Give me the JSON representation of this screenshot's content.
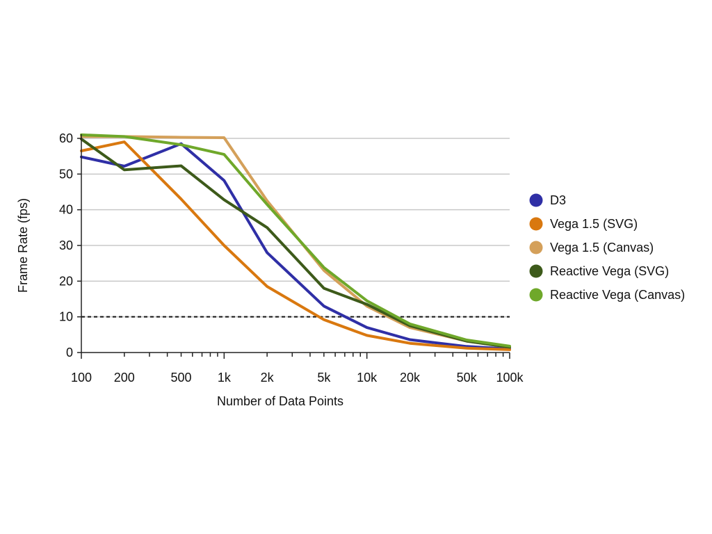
{
  "chart_data": {
    "type": "line",
    "title": "",
    "xlabel": "Number of Data Points",
    "ylabel": "Frame Rate (fps)",
    "x_scale": "log",
    "xlim": [
      100,
      100000
    ],
    "ylim": [
      0,
      60
    ],
    "x_tick_values": [
      100,
      200,
      500,
      1000,
      2000,
      5000,
      10000,
      20000,
      50000,
      100000
    ],
    "x_tick_labels": [
      "100",
      "200",
      "500",
      "1k",
      "2k",
      "5k",
      "10k",
      "20k",
      "50k",
      "100k"
    ],
    "y_ticks": [
      0,
      10,
      20,
      30,
      40,
      50,
      60
    ],
    "grid": "horizontal",
    "reference_line": {
      "y": 10,
      "style": "dashed"
    },
    "legend_position": "right",
    "x": [
      100,
      200,
      500,
      1000,
      2000,
      5000,
      10000,
      20000,
      50000,
      100000
    ],
    "series": [
      {
        "name": "D3",
        "color": "#2f2fa6",
        "values": [
          54.8,
          52.2,
          58.5,
          48.2,
          28.0,
          13.0,
          7.0,
          3.6,
          1.7,
          1.0
        ]
      },
      {
        "name": "Vega 1.5 (SVG)",
        "color": "#d9780f",
        "values": [
          56.5,
          59.0,
          43.0,
          30.0,
          18.5,
          9.2,
          4.8,
          2.6,
          1.2,
          0.8
        ]
      },
      {
        "name": "Vega 1.5 (Canvas)",
        "color": "#d4a05a",
        "values": [
          60.5,
          60.5,
          60.3,
          60.2,
          42.5,
          23.0,
          13.0,
          7.0,
          3.2,
          1.5
        ]
      },
      {
        "name": "Reactive Vega (SVG)",
        "color": "#3d5a1a",
        "values": [
          59.8,
          51.2,
          52.3,
          42.8,
          35.0,
          18.0,
          13.5,
          7.5,
          3.2,
          1.5
        ]
      },
      {
        "name": "Reactive Vega (Canvas)",
        "color": "#6fa82a",
        "values": [
          61.0,
          60.5,
          58.2,
          55.5,
          41.5,
          23.8,
          14.5,
          8.0,
          3.5,
          1.8
        ]
      }
    ]
  }
}
